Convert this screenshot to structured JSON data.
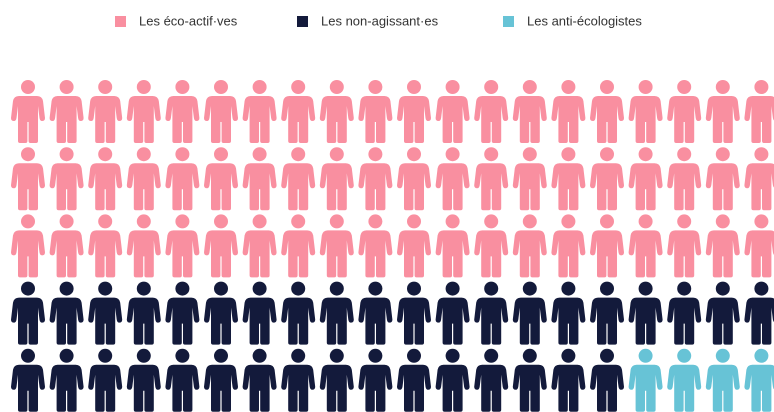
{
  "chart_data": {
    "type": "pictogram",
    "series": [
      {
        "name": "Les éco-actif·ves",
        "color": "#f98fa0",
        "values": [
          60
        ]
      },
      {
        "name": "Les non-agissant·es",
        "color": "#131a3b",
        "values": [
          36
        ]
      },
      {
        "name": "Les anti-écologistes",
        "color": "#67c3d6",
        "values": [
          4
        ]
      }
    ],
    "legend": "top"
  }
}
